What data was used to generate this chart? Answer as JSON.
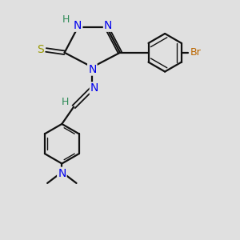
{
  "bg_color": "#e0e0e0",
  "bond_color": "#111111",
  "bond_width": 1.6,
  "N_color": "#0000ee",
  "S_color": "#999900",
  "Br_color": "#bb6600",
  "H_color": "#2e8b57",
  "font_size": 9,
  "figsize": [
    3.0,
    3.0
  ],
  "dpi": 100,
  "xlim": [
    0.5,
    8.5
  ],
  "ylim": [
    0.5,
    9.5
  ]
}
